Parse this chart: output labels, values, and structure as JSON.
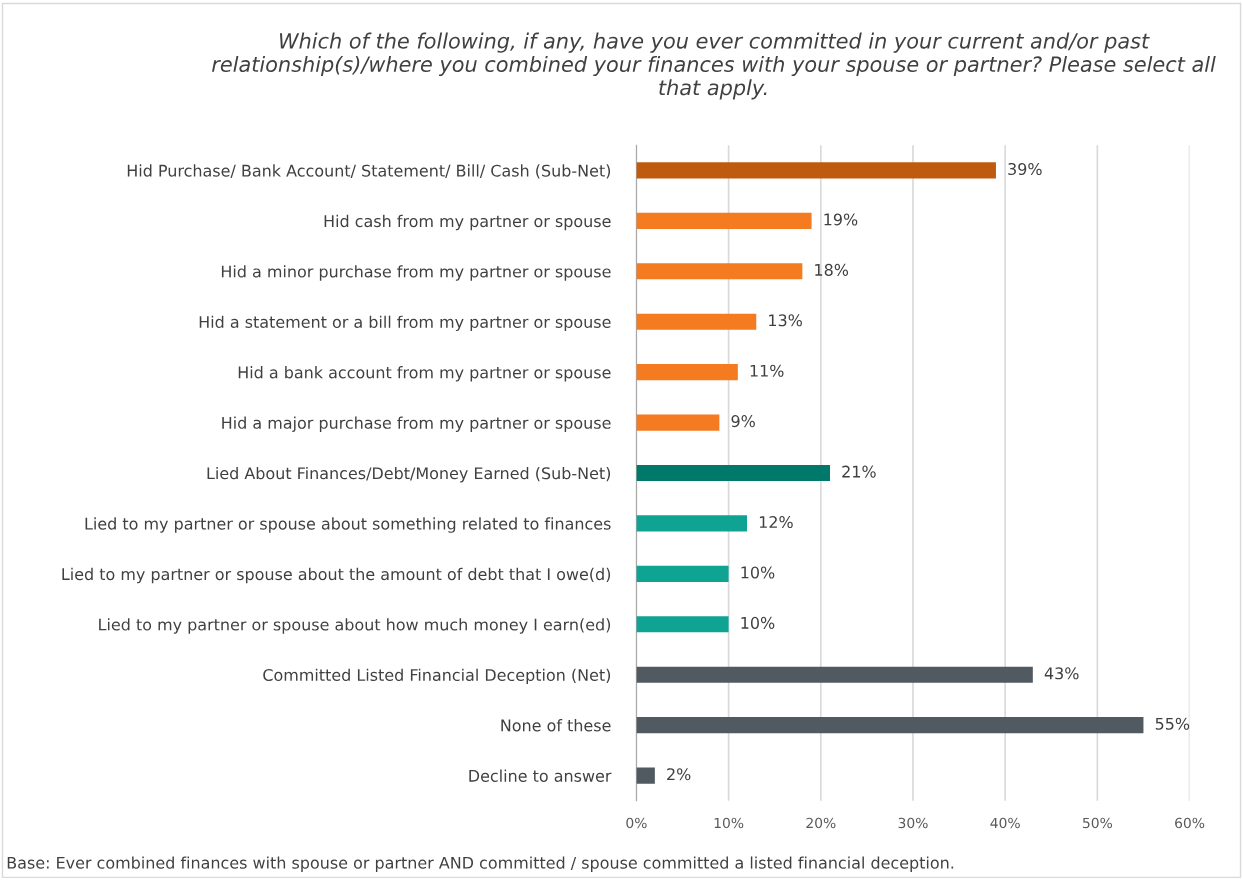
{
  "chart_data": {
    "type": "bar",
    "orientation": "horizontal",
    "title": "Which of the following, if any, have you ever committed in your current and/or past relationship(s)/where you combined your finances with your spouse or partner? Please select all that apply.",
    "categories": [
      "Hid Purchase/ Bank Account/ Statement/ Bill/ Cash (Sub-Net)",
      "Hid cash from my partner or spouse",
      "Hid a minor purchase from my partner or spouse",
      "Hid a statement or a bill from my partner or spouse",
      "Hid a bank account from my partner or spouse",
      "Hid a major purchase from my partner or spouse",
      "Lied About Finances/Debt/Money Earned (Sub-Net)",
      "Lied to my partner or spouse about something related to finances",
      "Lied to my partner or spouse about the amount of debt that I owe(d)",
      "Lied to my partner or spouse about how much money I earn(ed)",
      "Committed Listed Financial Deception (Net)",
      "None of these",
      "Decline to answer"
    ],
    "values": [
      39,
      19,
      18,
      13,
      11,
      9,
      21,
      12,
      10,
      10,
      43,
      55,
      2
    ],
    "value_labels": [
      "39%",
      "19%",
      "18%",
      "13%",
      "11%",
      "9%",
      "21%",
      "12%",
      "10%",
      "10%",
      "43%",
      "55%",
      "2%"
    ],
    "colors": [
      "#bf5b0f",
      "#f47b20",
      "#f47b20",
      "#f47b20",
      "#f47b20",
      "#f47b20",
      "#00796b",
      "#0fa393",
      "#0fa393",
      "#0fa393",
      "#515961",
      "#515961",
      "#515961"
    ],
    "xlim": [
      0,
      60
    ],
    "xticks": [
      {
        "value": 0,
        "label": "0%"
      },
      {
        "value": 10,
        "label": "10%"
      },
      {
        "value": 20,
        "label": "20%"
      },
      {
        "value": 30,
        "label": "30%"
      },
      {
        "value": 40,
        "label": "40%"
      },
      {
        "value": 50,
        "label": "50%"
      },
      {
        "value": 60,
        "label": "60%"
      }
    ],
    "grid": "x",
    "legend": false,
    "annotations": [
      "Base: Ever combined finances with spouse or partner AND committed / spouse committed a listed financial deception."
    ]
  }
}
